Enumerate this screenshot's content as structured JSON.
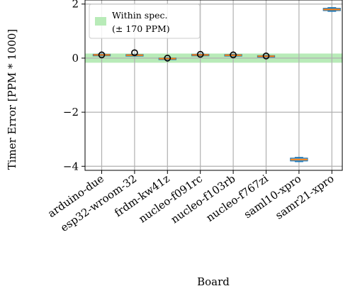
{
  "chart_data": {
    "type": "box",
    "title": "",
    "xlabel": "Board",
    "ylabel": "Timer Error [PPM * 1000]",
    "ylim": [
      -4.15,
      2.15
    ],
    "yticks": [
      -4,
      -2,
      0,
      2
    ],
    "ytick_labels": [
      "−4",
      "−2",
      "0",
      "2"
    ],
    "grid": true,
    "categories": [
      "arduino-due",
      "esp32-wroom-32",
      "frdm-kw41z",
      "nucleo-f091rc",
      "nucleo-f103rb",
      "nucleo-f767zi",
      "saml10-xpro",
      "samr21-xpro"
    ],
    "series": [
      {
        "values": [
          {
            "q1": 0.1,
            "median": 0.12,
            "q3": 0.14,
            "whisker_low": 0.09,
            "whisker_high": 0.15,
            "fliers": [
              0.12
            ]
          },
          {
            "q1": 0.09,
            "median": 0.11,
            "q3": 0.13,
            "whisker_low": 0.08,
            "whisker_high": 0.14,
            "fliers": [
              0.2
            ]
          },
          {
            "q1": -0.04,
            "median": -0.02,
            "q3": 0.0,
            "whisker_low": -0.05,
            "whisker_high": 0.01,
            "fliers": [
              0.0
            ]
          },
          {
            "q1": 0.1,
            "median": 0.12,
            "q3": 0.14,
            "whisker_low": 0.09,
            "whisker_high": 0.15,
            "fliers": [
              0.14
            ]
          },
          {
            "q1": 0.09,
            "median": 0.11,
            "q3": 0.13,
            "whisker_low": 0.08,
            "whisker_high": 0.14,
            "fliers": [
              0.12
            ]
          },
          {
            "q1": 0.05,
            "median": 0.07,
            "q3": 0.09,
            "whisker_low": 0.04,
            "whisker_high": 0.1,
            "fliers": [
              0.08
            ]
          },
          {
            "q1": -3.8,
            "median": -3.75,
            "q3": -3.7,
            "whisker_low": -3.83,
            "whisker_high": -3.67,
            "fliers": []
          },
          {
            "q1": 1.76,
            "median": 1.8,
            "q3": 1.84,
            "whisker_low": 1.73,
            "whisker_high": 1.87,
            "fliers": []
          }
        ]
      }
    ],
    "spec_band": {
      "low": -0.17,
      "high": 0.17
    },
    "legend": {
      "placement": "upper-left",
      "entries": [
        {
          "label_line1": "Within spec.",
          "label_line2": "(± 170 PPM)"
        }
      ]
    },
    "colors": {
      "box_edge": "#1f77b4",
      "median": "#ff7f0e",
      "band": "#b8ebb8",
      "grid": "#b0b0b0",
      "flier": "#000000"
    }
  }
}
